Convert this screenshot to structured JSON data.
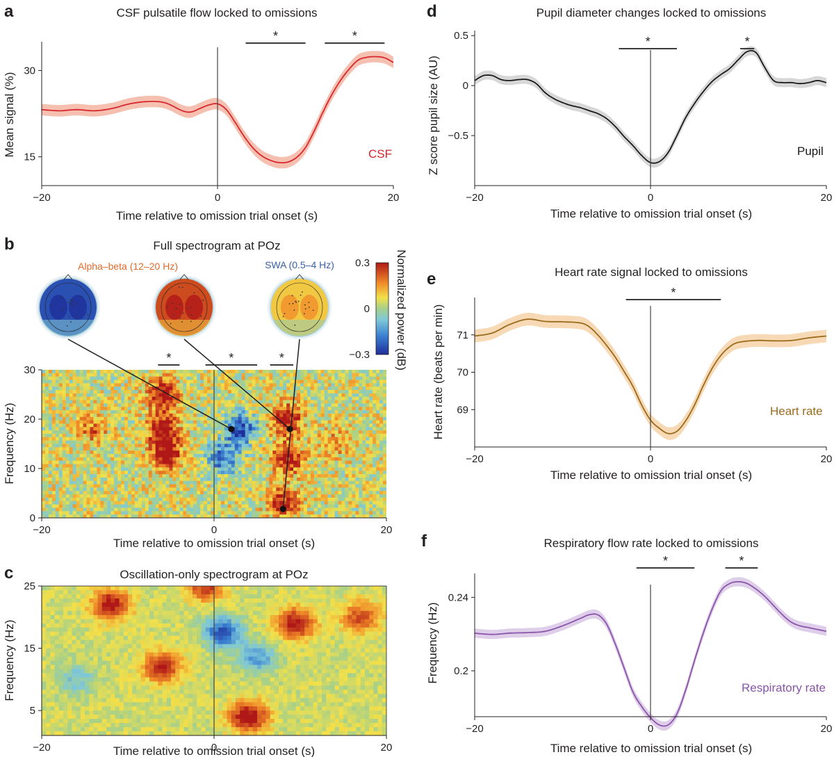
{
  "colors": {
    "csf": "#d7262e",
    "csf_band": "#f4b5a3",
    "pupil": "#1a1a1a",
    "pupil_band": "#d0d0d0",
    "heart": "#9a6b1c",
    "heart_band": "#f6d2a8",
    "resp": "#8a55a8",
    "resp_band": "#d9c6e6",
    "alpha_label": "#e06a2c",
    "swa_label": "#3a5fa8"
  },
  "chart_data": [
    {
      "id": "a",
      "panel": "a",
      "type": "line",
      "title": "CSF pulsatile flow locked to omissions",
      "xlabel": "Time relative to omission trial onset (s)",
      "ylabel": "Mean signal (%)",
      "xlim": [
        -20,
        20
      ],
      "ylim": [
        10,
        35
      ],
      "xticks": [
        -20,
        0,
        20
      ],
      "yticks": [
        15,
        30
      ],
      "series": [
        {
          "name": "CSF",
          "color": "#d7262e",
          "band": 1.0,
          "x": [
            -20,
            -18,
            -16,
            -14,
            -12,
            -10,
            -8,
            -6,
            -4,
            -3,
            -2,
            -1,
            0,
            1,
            2,
            3,
            4,
            5,
            6,
            7,
            8,
            9,
            10,
            11,
            12,
            13,
            14,
            15,
            16,
            17,
            18,
            19,
            20
          ],
          "y": [
            23.2,
            23.0,
            23.2,
            23.0,
            23.4,
            24.2,
            24.6,
            24.4,
            23.0,
            22.8,
            23.4,
            24.0,
            24.2,
            23.2,
            21.0,
            18.6,
            16.6,
            15.2,
            14.4,
            14.0,
            14.1,
            14.9,
            16.6,
            19.5,
            22.8,
            25.8,
            28.3,
            30.3,
            31.8,
            32.3,
            32.4,
            32.2,
            31.4
          ]
        }
      ],
      "significance": [
        {
          "x": [
            3.2,
            10.0
          ],
          "label": "*"
        },
        {
          "x": [
            12.2,
            19.0
          ],
          "label": "*"
        }
      ]
    },
    {
      "id": "d",
      "panel": "d",
      "type": "line",
      "title": "Pupil diameter changes locked to omissions",
      "xlabel": "Time relative to omission trial onset (s)",
      "ylabel": "Z score pupil size (AU)",
      "xlim": [
        -20,
        20
      ],
      "ylim": [
        -1.0,
        0.55
      ],
      "xticks": [
        -20,
        0,
        20
      ],
      "yticks": [
        -0.5,
        0,
        0.5
      ],
      "series": [
        {
          "name": "Pupil",
          "color": "#1a1a1a",
          "band": 0.045,
          "x": [
            -20,
            -19,
            -18,
            -17,
            -16,
            -15,
            -14,
            -13,
            -12,
            -11,
            -10,
            -9,
            -8,
            -7,
            -6,
            -5,
            -4,
            -3,
            -2,
            -1,
            0,
            1,
            2,
            3,
            4,
            5,
            6,
            7,
            8,
            9,
            10,
            11,
            12,
            13,
            14,
            15,
            16,
            17,
            18,
            19,
            20
          ],
          "y": [
            0.05,
            0.1,
            0.1,
            0.06,
            0.05,
            0.06,
            0.06,
            0.02,
            -0.07,
            -0.13,
            -0.17,
            -0.2,
            -0.22,
            -0.25,
            -0.28,
            -0.33,
            -0.41,
            -0.51,
            -0.6,
            -0.7,
            -0.77,
            -0.76,
            -0.67,
            -0.5,
            -0.32,
            -0.18,
            -0.06,
            0.04,
            0.11,
            0.17,
            0.26,
            0.34,
            0.33,
            0.18,
            0.05,
            0.03,
            0.03,
            0.02,
            0.03,
            0.05,
            0.03
          ]
        }
      ],
      "significance": [
        {
          "x": [
            -3.6,
            3.0
          ],
          "label": "*"
        },
        {
          "x": [
            10.2,
            11.8
          ],
          "label": "*"
        }
      ]
    },
    {
      "id": "b",
      "panel": "b",
      "type": "heatmap",
      "title": "Full spectrogram at POz",
      "xlabel": "Time relative to omission trial onset (s)",
      "ylabel": "Frequency (Hz)",
      "xlim": [
        -20,
        20
      ],
      "ylim": [
        0,
        30
      ],
      "xticks": [
        -20,
        0,
        20
      ],
      "yticks": [
        0,
        10,
        20,
        30
      ],
      "colorbar": {
        "label": "Normalized power (dB)",
        "min": -0.3,
        "max": 0.3,
        "ticks": [
          -0.3,
          0,
          0.3
        ]
      },
      "significance": [
        {
          "x": [
            -6.5,
            -4.0
          ],
          "label": "*"
        },
        {
          "x": [
            -1.0,
            5.0
          ],
          "label": "*"
        },
        {
          "x": [
            6.5,
            9.2
          ],
          "label": "*"
        }
      ],
      "topomaps": [
        {
          "label": "",
          "mean_power": -0.25,
          "x": 2.0,
          "y": 18.0
        },
        {
          "label": "Alpha–beta (12–20 Hz)",
          "mean_power": 0.24,
          "x": 8.8,
          "y": 18.0
        },
        {
          "label": "SWA (0.5–4 Hz)",
          "mean_power": 0.1,
          "x": 8.0,
          "y": 1.8
        }
      ],
      "hotspots": [
        {
          "x": -6,
          "y": 25,
          "power": 0.28
        },
        {
          "x": -6,
          "y": 18,
          "power": 0.3
        },
        {
          "x": -5.5,
          "y": 13,
          "power": 0.3
        },
        {
          "x": 3,
          "y": 18,
          "power": -0.3
        },
        {
          "x": 1,
          "y": 12,
          "power": -0.25
        },
        {
          "x": 8.5,
          "y": 20,
          "power": 0.3
        },
        {
          "x": 8.5,
          "y": 12,
          "power": 0.28
        },
        {
          "x": 8,
          "y": 3,
          "power": 0.25
        },
        {
          "x": -14,
          "y": 18,
          "power": 0.15
        },
        {
          "x": 14,
          "y": 15,
          "power": 0.12
        }
      ]
    },
    {
      "id": "c",
      "panel": "c",
      "type": "heatmap",
      "title": "Oscillation-only spectrogram at POz",
      "xlabel": "Time relative to omission trial onset (s)",
      "ylabel": "Frequency (Hz)",
      "xlim": [
        -20,
        20
      ],
      "ylim": [
        1,
        25
      ],
      "xticks": [
        -20,
        0,
        20
      ],
      "yticks": [
        5,
        15,
        25
      ],
      "hotspots": [
        {
          "x": -12,
          "y": 22,
          "power": 0.28
        },
        {
          "x": -6,
          "y": 12,
          "power": 0.25
        },
        {
          "x": 1,
          "y": 17.5,
          "power": -0.28
        },
        {
          "x": 4,
          "y": 4,
          "power": 0.3
        },
        {
          "x": 9.5,
          "y": 19,
          "power": 0.28
        },
        {
          "x": 17,
          "y": 20,
          "power": 0.2
        },
        {
          "x": 5,
          "y": 13.5,
          "power": -0.18
        },
        {
          "x": -16,
          "y": 10,
          "power": -0.12
        },
        {
          "x": -1,
          "y": 25,
          "power": 0.22
        }
      ]
    },
    {
      "id": "e",
      "panel": "e",
      "type": "line",
      "title": "Heart rate signal locked to omissions",
      "xlabel": "Time relative to omission trial onset (s)",
      "ylabel": "Heart rate (beats per min)",
      "xlim": [
        -20,
        20
      ],
      "ylim": [
        68.0,
        72.0
      ],
      "xticks": [
        -20,
        0,
        20
      ],
      "yticks": [
        69,
        70,
        71
      ],
      "series": [
        {
          "name": "Heart rate",
          "color": "#9a6b1c",
          "band": 0.17,
          "x": [
            -20,
            -18,
            -16,
            -14,
            -12,
            -10,
            -8,
            -7,
            -6,
            -5,
            -4,
            -3,
            -2,
            -1,
            0,
            1,
            2,
            3,
            4,
            5,
            6,
            7,
            8,
            9,
            10,
            12,
            14,
            16,
            18,
            20
          ],
          "y": [
            70.97,
            71.05,
            71.28,
            71.42,
            71.36,
            71.35,
            71.32,
            71.22,
            71.0,
            70.72,
            70.4,
            70.02,
            69.62,
            69.12,
            68.72,
            68.5,
            68.36,
            68.42,
            68.7,
            69.12,
            69.64,
            70.1,
            70.45,
            70.68,
            70.8,
            70.85,
            70.84,
            70.85,
            70.92,
            70.97
          ]
        }
      ],
      "significance": [
        {
          "x": [
            -2.8,
            8.0
          ],
          "label": "*"
        }
      ]
    },
    {
      "id": "f",
      "panel": "f",
      "type": "line",
      "title": "Respiratory flow rate locked to omissions",
      "xlabel": "Time relative to omission trial onset (s)",
      "ylabel": "Frequency (Hz)",
      "xlim": [
        -20,
        20
      ],
      "ylim": [
        0.175,
        0.253
      ],
      "xticks": [
        -20,
        0,
        20
      ],
      "yticks": [
        0.2,
        0.24
      ],
      "series": [
        {
          "name": "Respiratory rate",
          "color": "#8a55a8",
          "band": 0.0025,
          "x": [
            -20,
            -18,
            -16,
            -14,
            -12,
            -10,
            -8,
            -7,
            -6,
            -5,
            -4,
            -3,
            -2,
            -1,
            0,
            1,
            2,
            3,
            4,
            5,
            6,
            7,
            8,
            9,
            10,
            11,
            12,
            13,
            14,
            15,
            16,
            17,
            18,
            19,
            20
          ],
          "y": [
            0.2205,
            0.2198,
            0.2205,
            0.2208,
            0.2215,
            0.2245,
            0.2285,
            0.2305,
            0.2305,
            0.2255,
            0.2145,
            0.2015,
            0.1885,
            0.1805,
            0.1745,
            0.1705,
            0.1705,
            0.1765,
            0.1895,
            0.2055,
            0.2205,
            0.2335,
            0.2435,
            0.2475,
            0.2485,
            0.2475,
            0.2445,
            0.2405,
            0.2355,
            0.2305,
            0.2265,
            0.2245,
            0.2235,
            0.2225,
            0.2215
          ]
        }
      ],
      "significance": [
        {
          "x": [
            -1.6,
            5.0
          ],
          "label": "*"
        },
        {
          "x": [
            8.5,
            12.2
          ],
          "label": "*"
        }
      ]
    }
  ]
}
